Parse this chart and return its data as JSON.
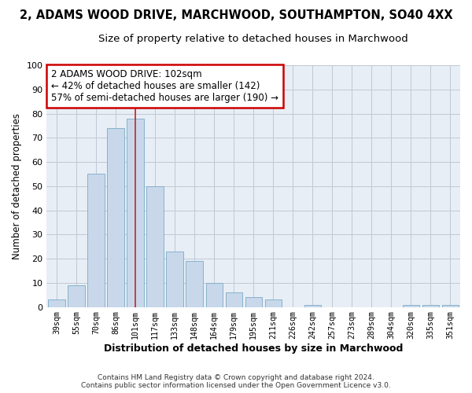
{
  "title": "2, ADAMS WOOD DRIVE, MARCHWOOD, SOUTHAMPTON, SO40 4XX",
  "subtitle": "Size of property relative to detached houses in Marchwood",
  "xlabel": "Distribution of detached houses by size in Marchwood",
  "ylabel": "Number of detached properties",
  "categories": [
    "39sqm",
    "55sqm",
    "70sqm",
    "86sqm",
    "101sqm",
    "117sqm",
    "133sqm",
    "148sqm",
    "164sqm",
    "179sqm",
    "195sqm",
    "211sqm",
    "226sqm",
    "242sqm",
    "257sqm",
    "273sqm",
    "289sqm",
    "304sqm",
    "320sqm",
    "335sqm",
    "351sqm"
  ],
  "values": [
    3,
    9,
    55,
    74,
    78,
    50,
    23,
    19,
    10,
    6,
    4,
    3,
    0,
    1,
    0,
    0,
    0,
    0,
    1,
    1,
    1
  ],
  "bar_color": "#c8d8ea",
  "bar_edge_color": "#7aaac8",
  "highlight_bar_index": 4,
  "highlight_line_color": "#cc2222",
  "annotation_title": "2 ADAMS WOOD DRIVE: 102sqm",
  "annotation_line1": "← 42% of detached houses are smaller (142)",
  "annotation_line2": "57% of semi-detached houses are larger (190) →",
  "annotation_box_color": "#cc0000",
  "ylim": [
    0,
    100
  ],
  "yticks": [
    0,
    10,
    20,
    30,
    40,
    50,
    60,
    70,
    80,
    90,
    100
  ],
  "plot_bg_color": "#e8eef5",
  "fig_bg_color": "#ffffff",
  "grid_color": "#c0c8d4",
  "footer_line1": "Contains HM Land Registry data © Crown copyright and database right 2024.",
  "footer_line2": "Contains public sector information licensed under the Open Government Licence v3.0.",
  "title_fontsize": 10.5,
  "subtitle_fontsize": 9.5,
  "xlabel_fontsize": 9,
  "ylabel_fontsize": 8.5,
  "annotation_fontsize": 8.5
}
